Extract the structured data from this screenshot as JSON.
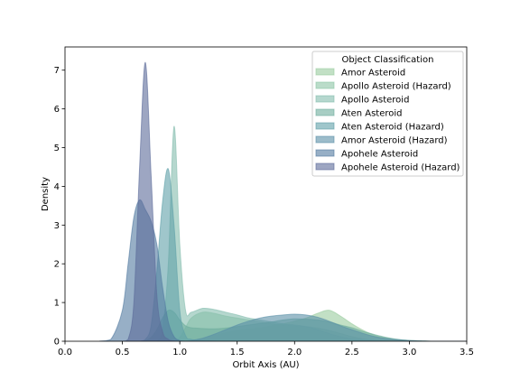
{
  "chart_data": {
    "type": "area",
    "xlabel": "Orbit Axis (AU)",
    "ylabel": "Density",
    "xlim": [
      0.0,
      3.5
    ],
    "ylim": [
      0,
      7.6
    ],
    "x_ticks": [
      "0.0",
      "0.5",
      "1.0",
      "1.5",
      "2.0",
      "2.5",
      "3.0",
      "3.5"
    ],
    "y_ticks": [
      "0",
      "1",
      "2",
      "3",
      "4",
      "5",
      "6",
      "7"
    ],
    "grid": false,
    "legend": {
      "title": "Object Classification",
      "placement": "top-right"
    },
    "x": [
      0.3,
      0.4,
      0.5,
      0.55,
      0.6,
      0.65,
      0.7,
      0.75,
      0.8,
      0.85,
      0.9,
      0.95,
      1.0,
      1.05,
      1.1,
      1.2,
      1.3,
      1.4,
      1.5,
      1.6,
      1.7,
      1.8,
      1.9,
      2.0,
      2.1,
      2.2,
      2.3,
      2.4,
      2.5,
      2.6,
      2.7,
      2.8,
      2.9,
      3.0,
      3.1,
      3.2,
      3.3,
      3.4,
      3.5
    ],
    "series": [
      {
        "name": "Amor Asteroid",
        "color": "#99cc9f",
        "values": [
          0,
          0,
          0,
          0,
          0,
          0,
          0,
          0,
          0,
          0,
          0,
          0,
          0,
          0,
          0.02,
          0.08,
          0.15,
          0.22,
          0.28,
          0.32,
          0.35,
          0.4,
          0.45,
          0.52,
          0.6,
          0.72,
          0.8,
          0.65,
          0.45,
          0.28,
          0.15,
          0.08,
          0.04,
          0.02,
          0.01,
          0,
          0,
          0,
          0
        ]
      },
      {
        "name": "Apollo Asteroid (Hazard)",
        "color": "#8cc4a5",
        "values": [
          0,
          0,
          0,
          0,
          0,
          0,
          0,
          0,
          0,
          0,
          0,
          0,
          0.1,
          0.35,
          0.6,
          0.75,
          0.72,
          0.65,
          0.6,
          0.55,
          0.5,
          0.45,
          0.42,
          0.4,
          0.38,
          0.34,
          0.28,
          0.2,
          0.12,
          0.06,
          0.03,
          0.02,
          0.01,
          0,
          0,
          0,
          0,
          0,
          0
        ]
      },
      {
        "name": "Apollo Asteroid",
        "color": "#84bcae",
        "values": [
          0,
          0,
          0,
          0,
          0,
          0,
          0,
          0,
          0,
          0.3,
          2.0,
          5.55,
          2.5,
          0.8,
          0.75,
          0.85,
          0.82,
          0.75,
          0.68,
          0.6,
          0.55,
          0.5,
          0.45,
          0.42,
          0.38,
          0.3,
          0.2,
          0.12,
          0.06,
          0.03,
          0.01,
          0,
          0,
          0,
          0,
          0,
          0,
          0,
          0
        ]
      },
      {
        "name": "Aten Asteroid",
        "color": "#6eae9c",
        "values": [
          0,
          0,
          0,
          0,
          0,
          0,
          0.02,
          0.1,
          0.3,
          0.6,
          0.8,
          0.75,
          0.55,
          0.4,
          0.35,
          0.33,
          0.32,
          0.34,
          0.38,
          0.42,
          0.46,
          0.5,
          0.55,
          0.58,
          0.57,
          0.55,
          0.5,
          0.42,
          0.35,
          0.25,
          0.17,
          0.1,
          0.05,
          0.02,
          0.01,
          0,
          0,
          0,
          0
        ]
      },
      {
        "name": "Aten Asteroid (Hazard)",
        "color": "#5fa0a8",
        "values": [
          0,
          0,
          0,
          0,
          0,
          0,
          0.05,
          0.4,
          1.8,
          3.6,
          4.45,
          3.0,
          0.8,
          0.15,
          0.05,
          0.02,
          0.01,
          0,
          0,
          0,
          0,
          0,
          0,
          0,
          0,
          0,
          0,
          0,
          0,
          0,
          0,
          0,
          0,
          0,
          0,
          0,
          0,
          0,
          0
        ]
      },
      {
        "name": "Amor Asteroid (Hazard)",
        "color": "#5a8fa6",
        "values": [
          0,
          0,
          0,
          0,
          0,
          0,
          0,
          0,
          0,
          0,
          0,
          0,
          0,
          0,
          0.02,
          0.08,
          0.18,
          0.3,
          0.42,
          0.52,
          0.6,
          0.65,
          0.68,
          0.7,
          0.68,
          0.62,
          0.52,
          0.4,
          0.3,
          0.2,
          0.12,
          0.07,
          0.04,
          0.02,
          0.01,
          0,
          0,
          0,
          0
        ]
      },
      {
        "name": "Apohele Asteroid",
        "color": "#517aa0",
        "values": [
          0,
          0.05,
          0.8,
          2.0,
          3.2,
          3.65,
          3.4,
          3.1,
          2.5,
          1.4,
          0.5,
          0.12,
          0.02,
          0,
          0,
          0,
          0,
          0,
          0,
          0,
          0,
          0,
          0,
          0,
          0,
          0,
          0,
          0,
          0,
          0,
          0,
          0,
          0,
          0,
          0,
          0,
          0,
          0,
          0
        ]
      },
      {
        "name": "Apohele Asteroid (Hazard)",
        "color": "#5c6b9a",
        "values": [
          0,
          0,
          0,
          0.05,
          1.0,
          4.5,
          7.2,
          4.3,
          1.2,
          0.25,
          0.05,
          0.01,
          0,
          0,
          0,
          0,
          0,
          0,
          0,
          0,
          0,
          0,
          0,
          0,
          0,
          0,
          0,
          0,
          0,
          0,
          0,
          0,
          0,
          0,
          0,
          0,
          0,
          0,
          0
        ]
      }
    ]
  }
}
